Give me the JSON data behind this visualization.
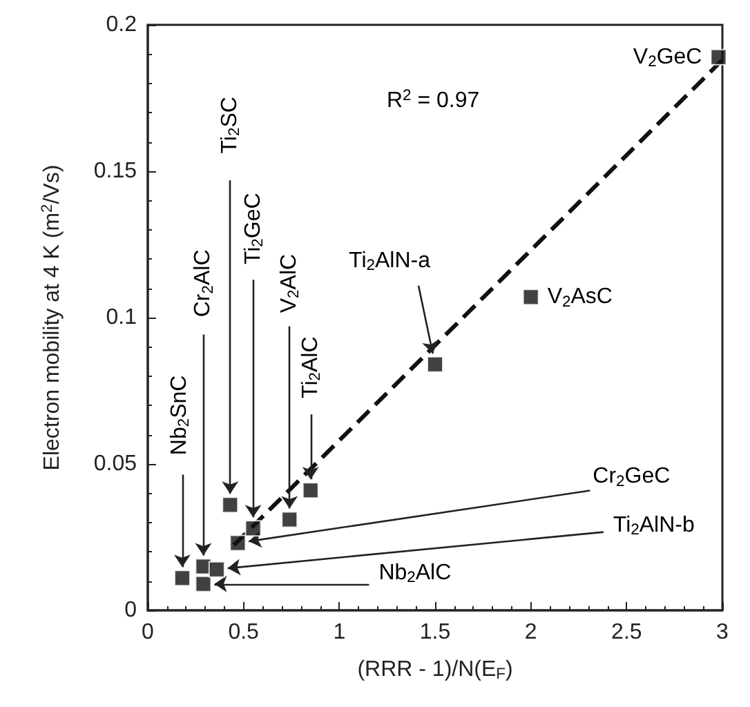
{
  "chart_data": {
    "type": "scatter",
    "xlabel": "(RRR - 1)/N(E$_{F}$)",
    "ylabel": "Electron mobility at 4 K (m$^{2}$/Vs)",
    "xlim": [
      0,
      3
    ],
    "xticks": [
      0,
      0.5,
      1,
      1.5,
      2,
      2.5,
      3
    ],
    "ylim": [
      0,
      0.2
    ],
    "yticks": [
      0,
      0.05,
      0.1,
      0.15,
      0.2
    ],
    "grid": false,
    "marker": "square",
    "series": [
      {
        "color": "#111111",
        "x": [
          0.18,
          0.29,
          0.29,
          0.36,
          0.43,
          0.47,
          0.55,
          0.74,
          0.85,
          1.5,
          2.0,
          2.98
        ],
        "values": [
          0.011,
          0.015,
          0.009,
          0.014,
          0.036,
          0.023,
          0.028,
          0.031,
          0.041,
          0.084,
          0.107,
          0.189
        ]
      },
      {
        "type": "line",
        "color": "#111111",
        "line_style": "dashed",
        "marker": "none",
        "x": [
          0.45,
          3
        ],
        "values": [
          0.0223,
          0.188
        ]
      }
    ],
    "annotations": [
      "R$^{2}$ = 0.97",
      {
        "text": "Nb$_{2}$SnC",
        "x": 0.18,
        "y": 0.011
      },
      {
        "text": "Cr$_{2}$AlC",
        "x": 0.29,
        "y": 0.015
      },
      {
        "text": "Ti$_{2}$SC",
        "x": 0.43,
        "y": 0.036
      },
      {
        "text": "Ti$_{2}$GeC",
        "x": 0.55,
        "y": 0.028
      },
      {
        "text": "V$_{2}$AlC",
        "x": 0.74,
        "y": 0.031
      },
      {
        "text": "Ti$_{2}$AlC",
        "x": 0.85,
        "y": 0.041
      },
      {
        "text": "Ti$_{2}$AlN-a",
        "x": 1.5,
        "y": 0.084
      },
      {
        "text": "V$_{2}$AsC",
        "x": 2.0,
        "y": 0.107
      },
      {
        "text": "V$_{2}$GeC",
        "x": 2.98,
        "y": 0.189
      },
      {
        "text": "Cr$_{2}$GeC",
        "x": 0.47,
        "y": 0.023
      },
      {
        "text": "Ti$_{2}$AlN-b",
        "x": 0.36,
        "y": 0.014
      },
      {
        "text": "Nb$_{2}$AlC",
        "x": 0.29,
        "y": 0.009
      }
    ]
  }
}
